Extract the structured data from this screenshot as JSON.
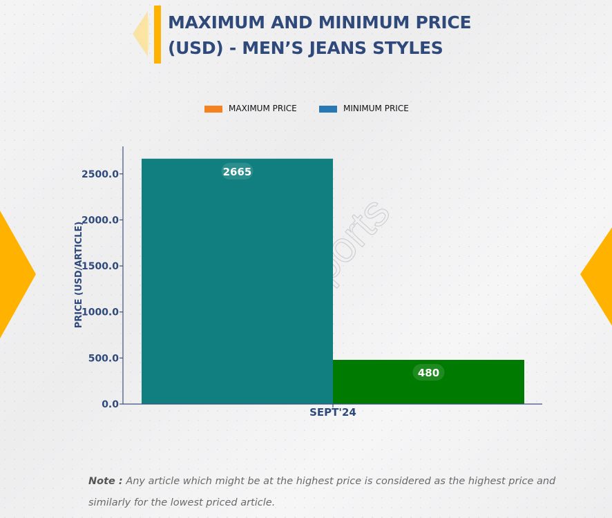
{
  "title": "MAXIMUM AND MINIMUM PRICE (USD) - MEN’S JEANS STYLES",
  "legend": [
    {
      "label": "MAXIMUM PRICE",
      "color": "#f5821f"
    },
    {
      "label": "MINIMUM PRICE",
      "color": "#2878b4"
    }
  ],
  "watermark": "D&J Reports",
  "note": {
    "lead": "Note :",
    "text": "Any article which might be at the highest price is considered as the highest price and similarly for the lowest priced article."
  },
  "colors": {
    "max_bar": "#117f7f",
    "min_bar": "#007a00",
    "axis": "#3c4f7c",
    "title": "#2f4a7a",
    "accent": "#ffb300"
  },
  "chart_data": {
    "type": "bar",
    "categories": [
      "SEPT'24"
    ],
    "series": [
      {
        "name": "MAXIMUM PRICE",
        "values": [
          2665
        ]
      },
      {
        "name": "MINIMUM PRICE",
        "values": [
          480
        ]
      }
    ],
    "data_labels": [
      "2665",
      "480"
    ],
    "ylabel": "PRICE (USD/ARTICLE)",
    "xlabel": "",
    "ylim": [
      0,
      2800
    ],
    "yticks": [
      0,
      500,
      1000,
      1500,
      2000,
      2500
    ],
    "ytick_labels": [
      "0.0",
      "500.0",
      "1000.0",
      "1500.0",
      "2000.0",
      "2500.0"
    ],
    "grid": false,
    "legend_position": "top"
  }
}
